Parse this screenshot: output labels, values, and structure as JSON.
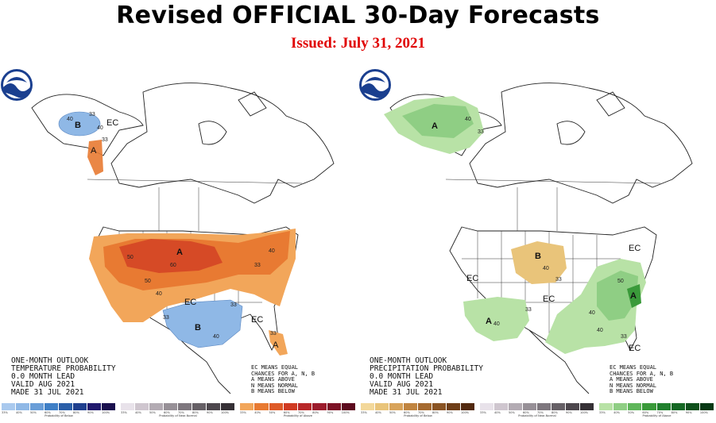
{
  "header": {
    "title": "Revised OFFICIAL 30-Day Forecasts",
    "issued": "Issued: July 31, 2021"
  },
  "colors": {
    "title": "#000000",
    "issued": "#e00000",
    "above_temp": "#e87a32",
    "above_temp_dark": "#d64a26",
    "below_temp": "#8fb8e6",
    "above_precip": "#8fce84",
    "above_precip_dark": "#3a9a3a",
    "below_precip": "#e9c47a"
  },
  "temperature_map": {
    "caption_lines": [
      "ONE-MONTH OUTLOOK",
      "TEMPERATURE PROBABILITY",
      "0.0 MONTH LEAD",
      "VALID AUG 2021",
      "MADE 31 JUL 2021"
    ],
    "legend_lines": [
      "EC MEANS EQUAL",
      "CHANCES FOR A, N, B",
      "A MEANS ABOVE",
      "N MEANS NORMAL",
      "B MEANS BELOW"
    ],
    "region_labels": {
      "ak_below": "B",
      "ak_ec": "EC",
      "ak_above": "A",
      "conus_above": "A",
      "conus_ec": "EC",
      "conus_below": "B",
      "se_ec": "EC",
      "fl_above": "A"
    },
    "contour_labels": [
      "40",
      "33",
      "40",
      "33",
      "50",
      "60",
      "50",
      "40",
      "33",
      "40",
      "33",
      "33",
      "40",
      "33"
    ]
  },
  "precipitation_map": {
    "caption_lines": [
      "ONE-MONTH OUTLOOK",
      "PRECIPITATION PROBABILITY",
      "0.0 MONTH LEAD",
      "VALID AUG 2021",
      "MADE 31 JUL 2021"
    ],
    "legend_lines": [
      "EC MEANS EQUAL",
      "CHANCES FOR A, N, B",
      "A MEANS ABOVE",
      "N MEANS NORMAL",
      "B MEANS BELOW"
    ],
    "region_labels": {
      "ak_above": "A",
      "ne_ec": "EC",
      "plains_below": "B",
      "west_ec": "EC",
      "central_ec": "EC",
      "sw_above": "A",
      "east_above": "A",
      "fl_ec": "EC"
    },
    "contour_labels": [
      "40",
      "33",
      "40",
      "33",
      "33",
      "40",
      "40",
      "50",
      "40",
      "33"
    ]
  },
  "scales": [
    {
      "label": "Probability of Below",
      "ticks": [
        "33%",
        "40%",
        "50%",
        "60%",
        "70%",
        "80%",
        "90%",
        "100%"
      ],
      "colors": [
        "#a9c9ee",
        "#8fb8e6",
        "#6a9ed8",
        "#3f7fc6",
        "#2b5fa8",
        "#1f3f8e",
        "#221a6e",
        "#1a0f4e"
      ]
    },
    {
      "label": "Probability of Near-Normal",
      "ticks": [
        "33%",
        "40%",
        "50%",
        "60%",
        "70%",
        "80%",
        "90%",
        "100%"
      ],
      "colors": [
        "#e8e2ea",
        "#cfc6cf",
        "#b3abb3",
        "#979097",
        "#7e777e",
        "#666066",
        "#4d474d",
        "#353035"
      ]
    },
    {
      "label": "Probability of Above",
      "ticks": [
        "33%",
        "40%",
        "50%",
        "60%",
        "70%",
        "80%",
        "90%",
        "100%"
      ],
      "colors": [
        "#f2a65a",
        "#e87a32",
        "#de5a28",
        "#d03a22",
        "#b8282a",
        "#9c1c2c",
        "#7c1226",
        "#5c0a1e"
      ]
    },
    {
      "label": "Probability of Below",
      "ticks": [
        "33%",
        "40%",
        "50%",
        "60%",
        "70%",
        "80%",
        "90%",
        "100%"
      ],
      "colors": [
        "#f3d89a",
        "#e9c47a",
        "#d8a35a",
        "#c08440",
        "#a56a30",
        "#8a5424",
        "#6e3e18",
        "#52290e"
      ]
    },
    {
      "label": "Probability of Near-Normal",
      "ticks": [
        "33%",
        "40%",
        "50%",
        "60%",
        "70%",
        "80%",
        "90%",
        "100%"
      ],
      "colors": [
        "#e8e2ea",
        "#cfc6cf",
        "#b3abb3",
        "#979097",
        "#7e777e",
        "#666066",
        "#4d474d",
        "#353035"
      ]
    },
    {
      "label": "Probability of Above",
      "ticks": [
        "33%",
        "40%",
        "50%",
        "60%",
        "70%",
        "80%",
        "90%",
        "100%"
      ],
      "colors": [
        "#b8e2a6",
        "#8fce84",
        "#5fb65a",
        "#3a9a3a",
        "#21802e",
        "#156824",
        "#0e501c",
        "#083814"
      ]
    }
  ]
}
